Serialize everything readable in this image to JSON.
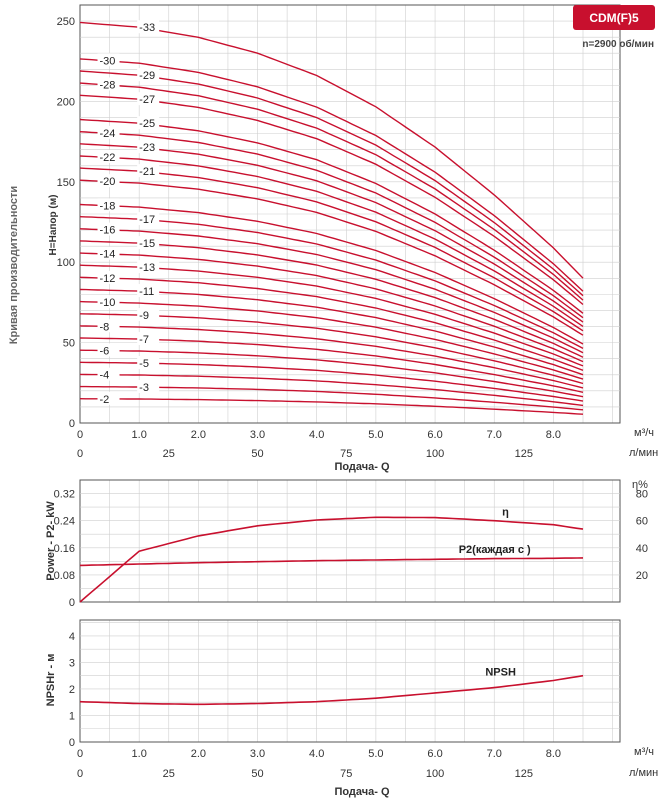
{
  "badge": "CDM(F)5",
  "speed": "n=2900 об/мин",
  "colors": {
    "curve": "#c8102e",
    "badge": "#c8102e",
    "grid": "#cfcfcf",
    "frame": "#555555"
  },
  "chart_data": [
    {
      "type": "line",
      "name": "head",
      "ylabel": "H=Напор (м)",
      "side_label": "Кривая производительности",
      "xlabel": "Подача- Q",
      "x_unit_top": "м³/ч",
      "x_unit_bottom": "л/мин",
      "x_ticks_top": [
        "0",
        "1.0",
        "2.0",
        "3.0",
        "4.0",
        "5.0",
        "6.0",
        "7.0",
        "8.0"
      ],
      "x_ticks_bottom": [
        "0",
        "25",
        "50",
        "75",
        "100",
        "125"
      ],
      "xlim": [
        0,
        8.5
      ],
      "ylim": [
        0,
        260
      ],
      "y_ticks": [
        0,
        50,
        100,
        150,
        200,
        250
      ],
      "grid": true,
      "curve_stages": [
        2,
        3,
        4,
        5,
        6,
        7,
        8,
        9,
        10,
        11,
        12,
        13,
        14,
        15,
        16,
        17,
        18,
        20,
        21,
        22,
        23,
        24,
        25,
        27,
        28,
        29,
        30,
        33
      ],
      "curve_labels": [
        "-2",
        "-3",
        "-4",
        "-5",
        "-6",
        "-7",
        "-8",
        "-9",
        "-10",
        "-11",
        "-12",
        "-13",
        "-14",
        "-15",
        "-16",
        "-17",
        "-18",
        "-20",
        "-21",
        "-22",
        "-23",
        "-24",
        "-25",
        "-27",
        "-28",
        "-29",
        "-30",
        "-33"
      ],
      "head_per_stage_x": [
        0,
        1,
        2,
        3,
        4,
        5,
        6,
        7,
        8,
        8.5
      ],
      "head_per_stage_y": [
        7.55,
        7.46,
        7.27,
        6.97,
        6.55,
        5.96,
        5.2,
        4.3,
        3.3,
        2.73
      ]
    },
    {
      "type": "line",
      "name": "power",
      "ylabel": "Power - P2- kW",
      "y_right_label": "η%",
      "ylim": [
        0,
        0.36
      ],
      "y_ticks": [
        "0",
        "0.08",
        "0.16",
        "0.24",
        "0.32"
      ],
      "y_right_ticks": [
        "20",
        "40",
        "60",
        "80"
      ],
      "grid": true,
      "series": [
        {
          "name": "η",
          "x": [
            0,
            1,
            2,
            3,
            4,
            5,
            6,
            7,
            8,
            8.5
          ],
          "y": [
            0,
            0.15,
            0.195,
            0.225,
            0.242,
            0.25,
            0.249,
            0.24,
            0.228,
            0.215
          ]
        },
        {
          "name": "P2(каждая с          )",
          "x": [
            0,
            1,
            2,
            3,
            4,
            5,
            6,
            7,
            8,
            8.5
          ],
          "y": [
            0.108,
            0.112,
            0.116,
            0.119,
            0.122,
            0.124,
            0.126,
            0.128,
            0.129,
            0.13
          ]
        }
      ]
    },
    {
      "type": "line",
      "name": "npsh",
      "ylabel": "NPSHr - м",
      "xlabel": "Подача- Q",
      "x_unit_top": "м³/ч",
      "x_unit_bottom": "л/мин",
      "x_ticks_top": [
        "0",
        "1.0",
        "2.0",
        "3.0",
        "4.0",
        "5.0",
        "6.0",
        "7.0",
        "8.0"
      ],
      "x_ticks_bottom": [
        "0",
        "25",
        "50",
        "75",
        "100",
        "125"
      ],
      "ylim": [
        0,
        4.6
      ],
      "y_ticks": [
        "0",
        "1",
        "2",
        "3",
        "4"
      ],
      "grid": true,
      "series": [
        {
          "name": "NPSH",
          "x": [
            0,
            1,
            2,
            3,
            4,
            5,
            6,
            7,
            8,
            8.5
          ],
          "y": [
            1.52,
            1.45,
            1.42,
            1.45,
            1.52,
            1.65,
            1.85,
            2.05,
            2.32,
            2.5
          ]
        }
      ]
    }
  ]
}
